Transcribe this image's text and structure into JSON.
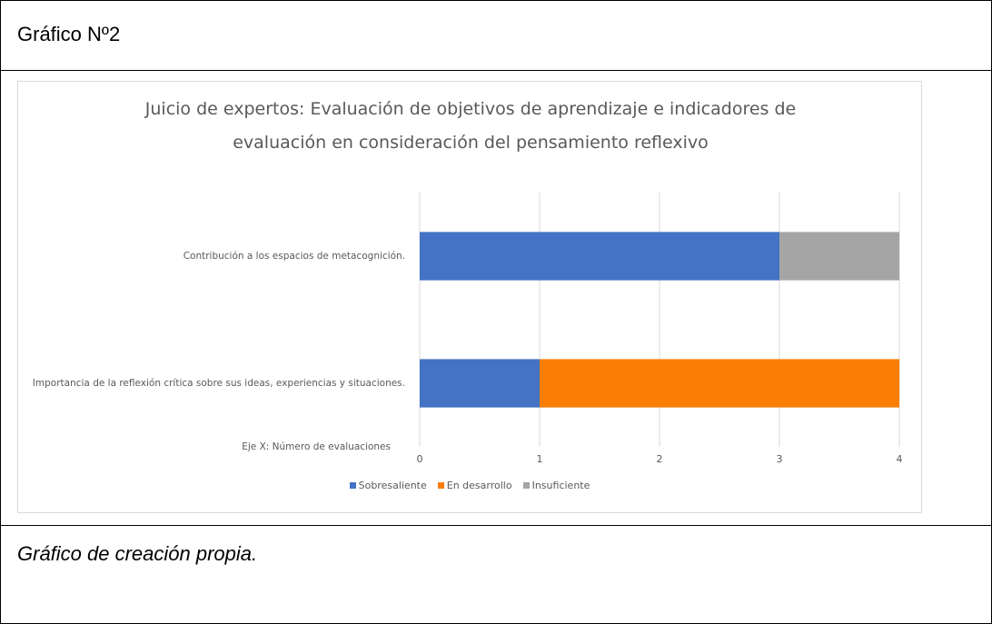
{
  "header": "Gráfico Nº2",
  "chart_data": {
    "type": "stacked-barh",
    "title": "Juicio de expertos: Evaluación de objetivos de aprendizaje e indicadores de evaluación en consideración del pensamiento reflexivo",
    "xlabel": "Eje X: Número de evaluaciones",
    "categories": [
      "Contribución a los espacios de metacognición.",
      "Importancia de la reflexión crítica sobre sus ideas, experiencias y situaciones."
    ],
    "series": [
      {
        "name": "Sobresaliente",
        "color": "#4472c4",
        "values": [
          3,
          1
        ]
      },
      {
        "name": "En desarrollo",
        "color": "#fb7d05",
        "values": [
          0,
          3
        ]
      },
      {
        "name": "Insuficiente",
        "color": "#a5a5a5",
        "values": [
          1,
          0
        ]
      }
    ],
    "xlim": [
      0,
      4
    ],
    "xticks": [
      0,
      1,
      2,
      3,
      4
    ],
    "grid": true,
    "legend": "bottom"
  },
  "caption": "Gráfico de creación propia."
}
